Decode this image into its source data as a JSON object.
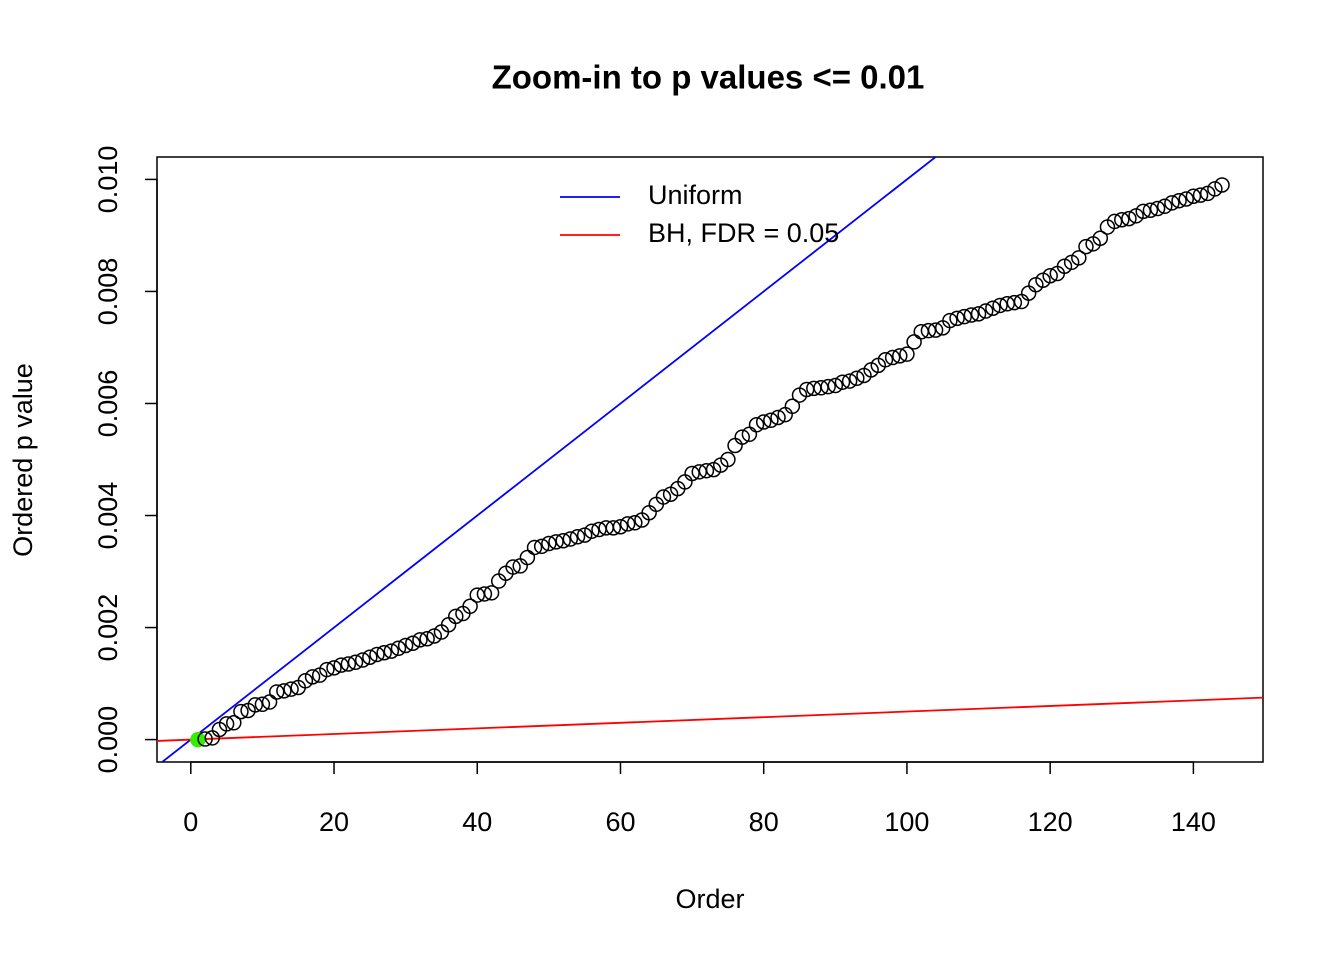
{
  "chart_data": {
    "type": "scatter",
    "title": "Zoom-in to p values <= 0.01",
    "x_label": "Order",
    "y_label": "Ordered p value",
    "x": [
      1,
      2,
      3,
      4,
      5,
      6,
      7,
      8,
      9,
      10,
      11,
      12,
      13,
      14,
      15,
      16,
      17,
      18,
      19,
      20,
      21,
      22,
      23,
      24,
      25,
      26,
      27,
      28,
      29,
      30,
      31,
      32,
      33,
      34,
      35,
      36,
      37,
      38,
      39,
      40,
      41,
      42,
      43,
      44,
      45,
      46,
      47,
      48,
      49,
      50,
      51,
      52,
      53,
      54,
      55,
      56,
      57,
      58,
      59,
      60,
      61,
      62,
      63,
      64,
      65,
      66,
      67,
      68,
      69,
      70,
      71,
      72,
      73,
      74,
      75,
      76,
      77,
      78,
      79,
      80,
      81,
      82,
      83,
      84,
      85,
      86,
      87,
      88,
      89,
      90,
      91,
      92,
      93,
      94,
      95,
      96,
      97,
      98,
      99,
      100,
      101,
      102,
      103,
      104,
      105,
      106,
      107,
      108,
      109,
      110,
      111,
      112,
      113,
      114,
      115,
      116,
      117,
      118,
      119,
      120,
      121,
      122,
      123,
      124,
      125,
      126,
      127,
      128,
      129,
      130,
      131,
      132,
      133,
      134,
      135,
      136,
      137,
      138,
      139,
      140,
      141,
      142,
      143,
      144
    ],
    "values": [
      0,
      1e-05,
      3e-05,
      0.00018,
      0.00028,
      0.0003,
      0.0005,
      0.00052,
      0.00062,
      0.00063,
      0.00067,
      0.00085,
      0.00087,
      0.0009,
      0.00093,
      0.00105,
      0.00112,
      0.00115,
      0.00125,
      0.00128,
      0.00133,
      0.00135,
      0.00138,
      0.00142,
      0.00147,
      0.00152,
      0.00155,
      0.00158,
      0.00163,
      0.00168,
      0.00172,
      0.00178,
      0.0018,
      0.00185,
      0.00192,
      0.00205,
      0.0022,
      0.00225,
      0.00238,
      0.00258,
      0.0026,
      0.00262,
      0.00283,
      0.00297,
      0.00308,
      0.0031,
      0.00325,
      0.00343,
      0.00345,
      0.0035,
      0.00353,
      0.00355,
      0.00358,
      0.00362,
      0.00365,
      0.00372,
      0.00375,
      0.00378,
      0.00378,
      0.0038,
      0.00385,
      0.00387,
      0.00392,
      0.00405,
      0.0042,
      0.00433,
      0.00438,
      0.00448,
      0.0046,
      0.00475,
      0.00478,
      0.0048,
      0.00482,
      0.0049,
      0.005,
      0.00525,
      0.0054,
      0.00545,
      0.00562,
      0.00567,
      0.0057,
      0.00575,
      0.0058,
      0.00595,
      0.00615,
      0.00625,
      0.00627,
      0.00628,
      0.0063,
      0.00632,
      0.00638,
      0.0064,
      0.00645,
      0.0065,
      0.0066,
      0.00668,
      0.00678,
      0.00682,
      0.00685,
      0.00688,
      0.0071,
      0.00728,
      0.0073,
      0.00731,
      0.00735,
      0.00748,
      0.00752,
      0.00755,
      0.00758,
      0.0076,
      0.00765,
      0.0077,
      0.00775,
      0.00778,
      0.0078,
      0.00782,
      0.00797,
      0.00812,
      0.0082,
      0.00828,
      0.00832,
      0.00845,
      0.00852,
      0.0086,
      0.0088,
      0.00885,
      0.00895,
      0.00915,
      0.00925,
      0.00928,
      0.0093,
      0.00935,
      0.00943,
      0.00945,
      0.00948,
      0.00952,
      0.00958,
      0.00962,
      0.00965,
      0.0097,
      0.00972,
      0.00975,
      0.00983,
      0.0099
    ],
    "color": "#000000",
    "highlight": {
      "index": 0,
      "color": "#33ee00"
    },
    "lines": [
      {
        "name": "Uniform",
        "color": "#0000ff",
        "intercept": 0,
        "slope": 0.0001
      },
      {
        "name": "BH, FDR = 0.05",
        "color": "#ff0000",
        "intercept": 0,
        "slope": 5e-06
      }
    ],
    "legend": "top",
    "xlim": [
      -4.72,
      149.72
    ],
    "xticks": [
      0,
      20,
      40,
      60,
      80,
      100,
      120,
      140
    ],
    "ylim": [
      -0.0004,
      0.0104
    ],
    "yticks": [
      {
        "value": 0,
        "label": "0.000"
      },
      {
        "value": 0.002,
        "label": "0.002"
      },
      {
        "value": 0.004,
        "label": "0.004"
      },
      {
        "value": 0.006,
        "label": "0.006"
      },
      {
        "value": 0.008,
        "label": "0.008"
      },
      {
        "value": 0.01,
        "label": "0.010"
      }
    ]
  }
}
